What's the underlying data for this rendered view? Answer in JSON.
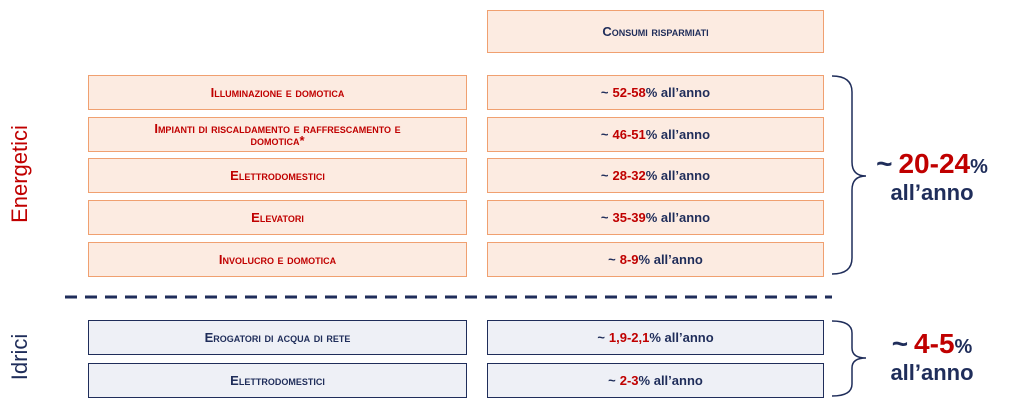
{
  "header": "Consumi risparmiati",
  "tilde": "~",
  "unit": "% all’anno",
  "year": "all’anno",
  "percent": "%",
  "groups": [
    {
      "name": "Energetici",
      "total": "20-24",
      "rows": [
        {
          "label": "Illuminazione e domotica",
          "range": "52-58"
        },
        {
          "label": "Impianti di riscaldamento e raffrescamento e domotica*",
          "range": "46-51"
        },
        {
          "label": "Elettrodomestici",
          "range": "28-32"
        },
        {
          "label": "Elevatori",
          "range": "35-39"
        },
        {
          "label": "Involucro e domotica",
          "range": "8-9"
        }
      ]
    },
    {
      "name": "Idrici",
      "total": "4-5",
      "rows": [
        {
          "label": "Erogatori di acqua di rete",
          "range": "1,9-2,1"
        },
        {
          "label": "Elettrodomestici",
          "range": "2-3"
        }
      ]
    }
  ]
}
